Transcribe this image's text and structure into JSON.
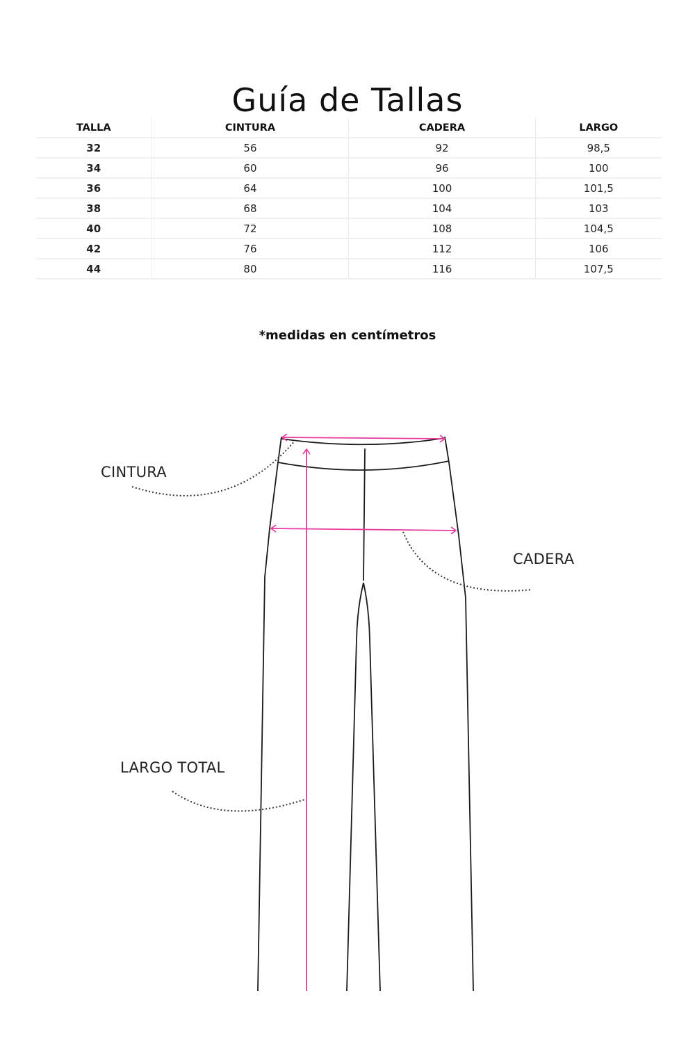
{
  "title": "Guía de Tallas",
  "table": {
    "headers": [
      "TALLA",
      "CINTURA",
      "CADERA",
      "LARGO"
    ],
    "rows": [
      [
        "32",
        "56",
        "92",
        "98,5"
      ],
      [
        "34",
        "60",
        "96",
        "100"
      ],
      [
        "36",
        "64",
        "100",
        "101,5"
      ],
      [
        "38",
        "68",
        "104",
        "103"
      ],
      [
        "40",
        "72",
        "108",
        "104,5"
      ],
      [
        "42",
        "76",
        "112",
        "106"
      ],
      [
        "44",
        "80",
        "116",
        "107,5"
      ]
    ]
  },
  "note": "*medidas en centímetros",
  "diagram": {
    "labels": {
      "waist": "CINTURA",
      "hip": "CADERA",
      "length": "LARGO TOTAL"
    },
    "colors": {
      "measure_arrow": "#e8399f",
      "outline": "#1a1a1a"
    }
  }
}
